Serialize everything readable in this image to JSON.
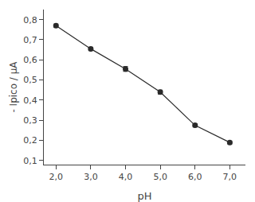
{
  "chart_data": {
    "type": "line",
    "x": [
      2.0,
      3.0,
      4.0,
      5.0,
      6.0,
      7.0
    ],
    "values": [
      0.77,
      0.655,
      0.555,
      0.44,
      0.275,
      0.19
    ],
    "yerr": [
      0.008,
      0.008,
      0.012,
      0.01,
      0.008,
      0.007
    ],
    "xlabel": "pH",
    "ylabel": "- Ipico / µA",
    "xlim": [
      1.65,
      7.45
    ],
    "ylim": [
      0.08,
      0.85
    ],
    "xticks": [
      {
        "value": 2.0,
        "label": "2,0"
      },
      {
        "value": 3.0,
        "label": "3,0"
      },
      {
        "value": 4.0,
        "label": "4,0"
      },
      {
        "value": 5.0,
        "label": "5,0"
      },
      {
        "value": 6.0,
        "label": "6,0"
      },
      {
        "value": 7.0,
        "label": "7,0"
      }
    ],
    "yticks": [
      {
        "value": 0.1,
        "label": "0,1"
      },
      {
        "value": 0.2,
        "label": "0,2"
      },
      {
        "value": 0.3,
        "label": "0,3"
      },
      {
        "value": 0.4,
        "label": "0,4"
      },
      {
        "value": 0.5,
        "label": "0,5"
      },
      {
        "value": 0.6,
        "label": "0,6"
      },
      {
        "value": 0.7,
        "label": "0,7"
      },
      {
        "value": 0.8,
        "label": "0,8"
      }
    ],
    "color": "#2a2a2a",
    "marker": "circle",
    "grid": false
  }
}
